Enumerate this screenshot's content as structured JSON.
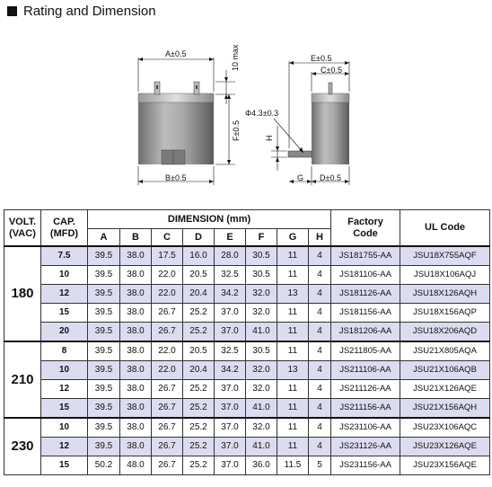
{
  "header": {
    "title": "Rating and Dimension"
  },
  "drawing": {
    "dim_a": "A±0.5",
    "dim_10max": "10 max",
    "dim_f": "F±0.5",
    "dim_b": "B±0.5",
    "dim_e": "E±0.5",
    "dim_c": "C±0.5",
    "dim_phi": "Φ4.3±0.3",
    "dim_h": "H",
    "dim_g": "G",
    "dim_d": "D±0.5"
  },
  "table": {
    "head": {
      "volt": "VOLT.",
      "volt_unit": "(VAC)",
      "cap": "CAP.",
      "cap_unit": "(MFD)",
      "dimension": "DIMENSION (mm)",
      "factory": "Factory",
      "factory2": "Code",
      "ul": "UL Code"
    },
    "cols": [
      "A",
      "B",
      "C",
      "D",
      "E",
      "F",
      "G",
      "H"
    ],
    "groups": [
      {
        "volt": "180",
        "rows": [
          {
            "cap": "7.5",
            "v": [
              "39.5",
              "38.0",
              "17.5",
              "16.0",
              "28.0",
              "30.5",
              "11",
              "4"
            ],
            "fc": "JS181755-AA",
            "ul": "JSU18X755AQF"
          },
          {
            "cap": "10",
            "v": [
              "39.5",
              "38.0",
              "22.0",
              "20.5",
              "32.5",
              "30.5",
              "11",
              "4"
            ],
            "fc": "JS181106-AA",
            "ul": "JSU18X106AQJ"
          },
          {
            "cap": "12",
            "v": [
              "39.5",
              "38.0",
              "22.0",
              "20.4",
              "34.2",
              "32.0",
              "13",
              "4"
            ],
            "fc": "JS181126-AA",
            "ul": "JSU18X126AQH"
          },
          {
            "cap": "15",
            "v": [
              "39.5",
              "38.0",
              "26.7",
              "25.2",
              "37.0",
              "32.0",
              "11",
              "4"
            ],
            "fc": "JS181156-AA",
            "ul": "JSU18X156AQP"
          },
          {
            "cap": "20",
            "v": [
              "39.5",
              "38.0",
              "26.7",
              "25.2",
              "37.0",
              "41.0",
              "11",
              "4"
            ],
            "fc": "JS181206-AA",
            "ul": "JSU18X206AQD"
          }
        ]
      },
      {
        "volt": "210",
        "rows": [
          {
            "cap": "8",
            "v": [
              "39.5",
              "38.0",
              "22.0",
              "20.5",
              "32.5",
              "30.5",
              "11",
              "4"
            ],
            "fc": "JS211805-AA",
            "ul": "JSU21X805AQA"
          },
          {
            "cap": "10",
            "v": [
              "39.5",
              "38.0",
              "22.0",
              "20.4",
              "34.2",
              "32.0",
              "13",
              "4"
            ],
            "fc": "JS211106-AA",
            "ul": "JSU21X106AQB"
          },
          {
            "cap": "12",
            "v": [
              "39.5",
              "38.0",
              "26.7",
              "25.2",
              "37.0",
              "32.0",
              "11",
              "4"
            ],
            "fc": "JS211126-AA",
            "ul": "JSU21X126AQE"
          },
          {
            "cap": "15",
            "v": [
              "39.5",
              "38.0",
              "26.7",
              "25.2",
              "37.0",
              "41.0",
              "11",
              "4"
            ],
            "fc": "JS211156-AA",
            "ul": "JSU21X156AQH"
          }
        ]
      },
      {
        "volt": "230",
        "rows": [
          {
            "cap": "10",
            "v": [
              "39.5",
              "38.0",
              "26.7",
              "25.2",
              "37.0",
              "32.0",
              "11",
              "4"
            ],
            "fc": "JS231106-AA",
            "ul": "JSU23X106AQC"
          },
          {
            "cap": "12",
            "v": [
              "39.5",
              "38.0",
              "26.7",
              "25.2",
              "37.0",
              "41.0",
              "11",
              "4"
            ],
            "fc": "JS231126-AA",
            "ul": "JSU23X126AQE"
          },
          {
            "cap": "15",
            "v": [
              "50.2",
              "48.0",
              "26.7",
              "25.2",
              "37.0",
              "36.0",
              "11.5",
              "5"
            ],
            "fc": "JS231156-AA",
            "ul": "JSU23X156AQE"
          }
        ]
      }
    ]
  }
}
